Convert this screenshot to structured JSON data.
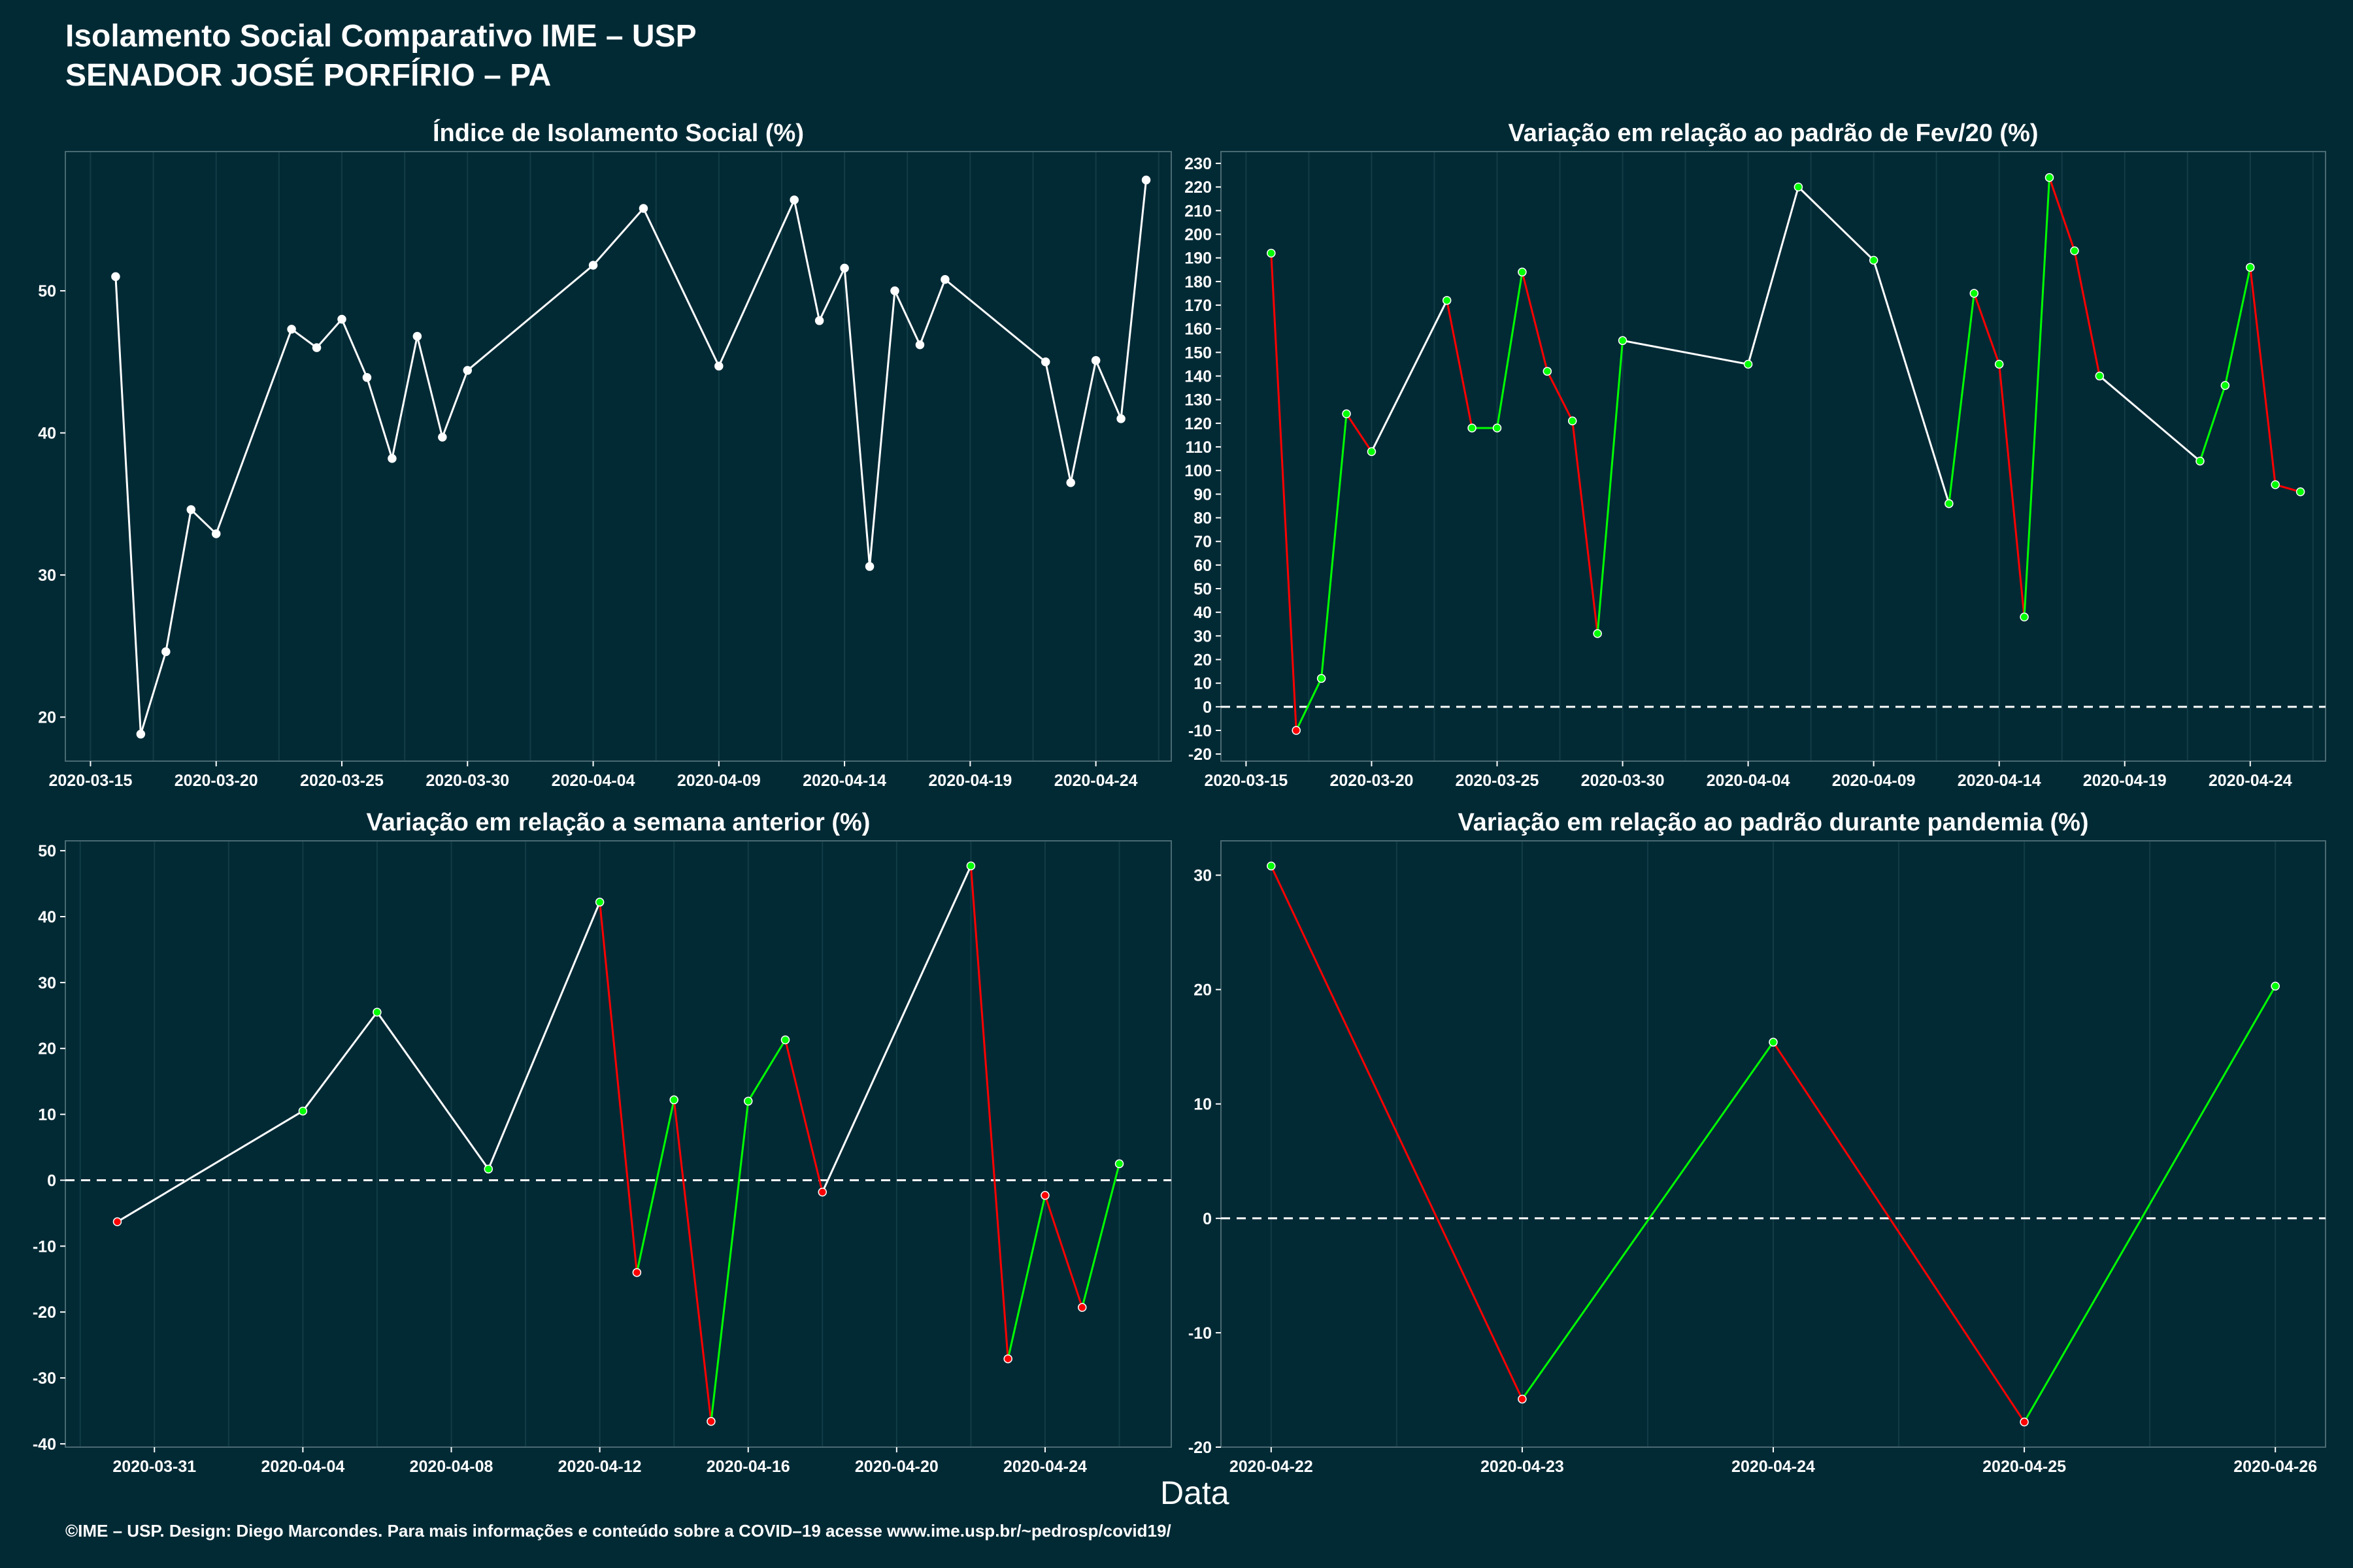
{
  "header": {
    "title_line1": "Isolamento Social Comparativo IME – USP",
    "title_line2": "SENADOR JOSÉ PORFÍRIO – PA"
  },
  "x_axis_label": "Data",
  "footer": "©IME – USP. Design: Diego Marcondes. Para mais informações e conteúdo sobre a COVID–19 acesse www.ime.usp.br/~pedrosp/covid19/",
  "colors": {
    "background": "#022a35",
    "line": "#ffffff",
    "positive": "#00ff00",
    "negative": "#ff0000",
    "grid": "#123c46"
  },
  "chart_data": [
    {
      "type": "line",
      "title": "Índice de Isolamento Social (%)",
      "ylim": [
        16.9,
        59.8
      ],
      "y_ticks": [
        20,
        30,
        40,
        50
      ],
      "x_ticks": [
        "2020-03-15",
        "2020-03-20",
        "2020-03-25",
        "2020-03-30",
        "2020-04-04",
        "2020-04-09",
        "2020-04-14",
        "2020-04-19",
        "2020-04-24"
      ],
      "xlim": [
        "2020-03-14",
        "2020-04-27"
      ],
      "color_mode": "white",
      "series": [
        {
          "points": [
            [
              "2020-03-16",
              51.0
            ],
            [
              "2020-03-17",
              18.8
            ],
            [
              "2020-03-18",
              24.6
            ],
            [
              "2020-03-19",
              34.6
            ],
            [
              "2020-03-20",
              32.9
            ],
            [
              "2020-03-23",
              47.3
            ],
            [
              "2020-03-24",
              46.0
            ],
            [
              "2020-03-25",
              48.0
            ],
            [
              "2020-03-26",
              43.9
            ],
            [
              "2020-03-27",
              38.2
            ],
            [
              "2020-03-28",
              46.8
            ],
            [
              "2020-03-29",
              39.7
            ],
            [
              "2020-03-30",
              44.4
            ],
            [
              "2020-04-04",
              51.8
            ],
            [
              "2020-04-06",
              55.8
            ],
            [
              "2020-04-09",
              44.7
            ],
            [
              "2020-04-12",
              56.4
            ],
            [
              "2020-04-13",
              47.9
            ],
            [
              "2020-04-14",
              51.6
            ],
            [
              "2020-04-15",
              30.6
            ],
            [
              "2020-04-16",
              50.0
            ],
            [
              "2020-04-17",
              46.2
            ],
            [
              "2020-04-18",
              50.8
            ],
            [
              "2020-04-22",
              45.0
            ],
            [
              "2020-04-23",
              36.5
            ],
            [
              "2020-04-24",
              45.1
            ],
            [
              "2020-04-25",
              41.0
            ],
            [
              "2020-04-26",
              57.8
            ]
          ]
        }
      ]
    },
    {
      "type": "line",
      "title": "Variação em relação ao padrão de Fev/20 (%)",
      "ylim": [
        -23,
        235
      ],
      "y_ticks": [
        -20,
        -10,
        0,
        10,
        20,
        30,
        40,
        50,
        60,
        70,
        80,
        90,
        100,
        110,
        120,
        130,
        140,
        150,
        160,
        170,
        180,
        190,
        200,
        210,
        220,
        230
      ],
      "x_ticks": [
        "2020-03-15",
        "2020-03-20",
        "2020-03-25",
        "2020-03-30",
        "2020-04-04",
        "2020-04-09",
        "2020-04-14",
        "2020-04-19",
        "2020-04-24"
      ],
      "xlim": [
        "2020-03-14",
        "2020-04-27"
      ],
      "zero_line": true,
      "color_mode": "sign_consecutive",
      "series": [
        {
          "points": [
            [
              "2020-03-16",
              192
            ],
            [
              "2020-03-17",
              -10
            ],
            [
              "2020-03-18",
              12
            ],
            [
              "2020-03-19",
              124
            ],
            [
              "2020-03-20",
              108
            ],
            [
              "2020-03-23",
              172
            ],
            [
              "2020-03-24",
              118
            ],
            [
              "2020-03-25",
              118
            ],
            [
              "2020-03-26",
              184
            ],
            [
              "2020-03-27",
              142
            ],
            [
              "2020-03-28",
              121
            ],
            [
              "2020-03-29",
              31
            ],
            [
              "2020-03-30",
              155
            ],
            [
              "2020-04-04",
              145
            ],
            [
              "2020-04-06",
              220
            ],
            [
              "2020-04-09",
              189
            ],
            [
              "2020-04-12",
              86
            ],
            [
              "2020-04-13",
              175
            ],
            [
              "2020-04-14",
              145
            ],
            [
              "2020-04-15",
              38
            ],
            [
              "2020-04-16",
              224
            ],
            [
              "2020-04-17",
              193
            ],
            [
              "2020-04-18",
              140
            ],
            [
              "2020-04-22",
              104
            ],
            [
              "2020-04-23",
              136
            ],
            [
              "2020-04-24",
              186
            ],
            [
              "2020-04-25",
              94
            ],
            [
              "2020-04-26",
              91
            ]
          ]
        }
      ]
    },
    {
      "type": "line",
      "title": "Variação em relação a semana anterior (%)",
      "ylim": [
        -40.5,
        51.5
      ],
      "y_ticks": [
        -40,
        -30,
        -20,
        -10,
        0,
        10,
        20,
        30,
        40,
        50
      ],
      "x_ticks": [
        "2020-03-31",
        "2020-04-04",
        "2020-04-08",
        "2020-04-12",
        "2020-04-16",
        "2020-04-20",
        "2020-04-24"
      ],
      "xlim": [
        "2020-03-28.6",
        "2020-04-27.4"
      ],
      "zero_line": true,
      "color_mode": "sign_consecutive",
      "series": [
        {
          "points": [
            [
              "2020-03-30",
              -6.3
            ],
            [
              "2020-04-04",
              10.5
            ],
            [
              "2020-04-06",
              25.5
            ],
            [
              "2020-04-09",
              1.7
            ],
            [
              "2020-04-12",
              42.2
            ],
            [
              "2020-04-13",
              -14.0
            ],
            [
              "2020-04-14",
              12.2
            ],
            [
              "2020-04-15",
              -36.6
            ],
            [
              "2020-04-16",
              12.0
            ],
            [
              "2020-04-17",
              21.3
            ],
            [
              "2020-04-18",
              -1.8
            ],
            [
              "2020-04-22",
              47.7
            ],
            [
              "2020-04-23",
              -27.1
            ],
            [
              "2020-04-24",
              -2.3
            ],
            [
              "2020-04-25",
              -19.3
            ],
            [
              "2020-04-26",
              2.5
            ]
          ]
        }
      ]
    },
    {
      "type": "line",
      "title": "Variação em relação ao padrão durante pandemia (%)",
      "ylim": [
        -20,
        33
      ],
      "y_ticks": [
        -20,
        -10,
        0,
        10,
        20,
        30
      ],
      "x_ticks": [
        "2020-04-22",
        "2020-04-23",
        "2020-04-24",
        "2020-04-25",
        "2020-04-26"
      ],
      "xlim": [
        "2020-04-21.8",
        "2020-04-26.2"
      ],
      "zero_line": true,
      "color_mode": "sign_consecutive",
      "series": [
        {
          "points": [
            [
              "2020-04-22",
              30.8
            ],
            [
              "2020-04-23",
              -15.8
            ],
            [
              "2020-04-24",
              15.4
            ],
            [
              "2020-04-25",
              -17.8
            ],
            [
              "2020-04-26",
              20.3
            ]
          ]
        }
      ]
    }
  ]
}
